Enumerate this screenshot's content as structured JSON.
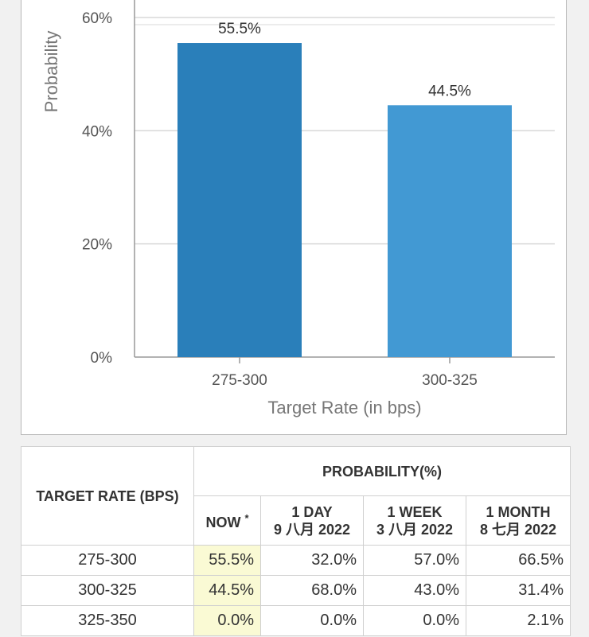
{
  "colors": {
    "bar1": "#2a7fba",
    "bar2": "#4299d3",
    "grid": "#d9d9d9",
    "axis": "#999999",
    "now_cell": "#fafad4"
  },
  "chart_data": {
    "type": "bar",
    "title": "",
    "xlabel": "Target Rate (in bps)",
    "ylabel": "Probability",
    "categories": [
      "275-300",
      "300-325"
    ],
    "values": [
      55.5,
      44.5
    ],
    "data_labels": [
      "55.5%",
      "44.5%"
    ],
    "yticks": [
      "0%",
      "20%",
      "40%",
      "60%"
    ],
    "ytick_values": [
      0,
      20,
      40,
      60
    ],
    "ylim": [
      0,
      60
    ],
    "grid": true
  },
  "table": {
    "header_target": "TARGET RATE (BPS)",
    "header_probability": "PROBABILITY(%)",
    "col_now": "NOW",
    "col_now_mark": "*",
    "col_day": "1 DAY",
    "col_day_date": "9 八月 2022",
    "col_week": "1 WEEK",
    "col_week_date": "3 八月 2022",
    "col_month": "1 MONTH",
    "col_month_date": "8 七月 2022",
    "rows": [
      {
        "rate": "275-300",
        "now": "55.5%",
        "day": "32.0%",
        "week": "57.0%",
        "month": "66.5%"
      },
      {
        "rate": "300-325",
        "now": "44.5%",
        "day": "68.0%",
        "week": "43.0%",
        "month": "31.4%"
      },
      {
        "rate": "325-350",
        "now": "0.0%",
        "day": "0.0%",
        "week": "0.0%",
        "month": "2.1%"
      }
    ]
  }
}
